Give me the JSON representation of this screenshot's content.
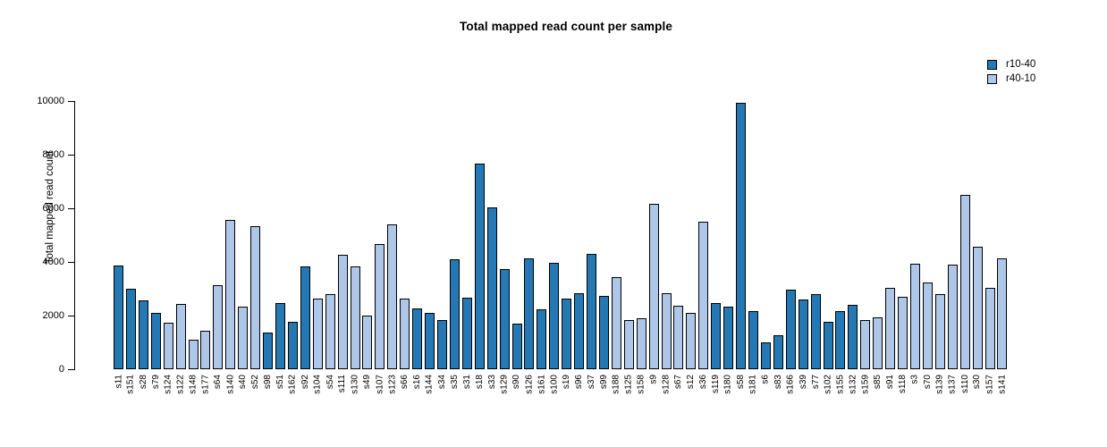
{
  "chart_data": {
    "type": "bar",
    "title": "Total mapped read count per sample",
    "xlabel": "",
    "ylabel": "Total mapped read count",
    "ylim": [
      0,
      10000
    ],
    "yticks": [
      0,
      2000,
      4000,
      6000,
      8000,
      10000
    ],
    "grid": false,
    "legend_position": "top-right",
    "bar_border_color": "#000000",
    "legend": [
      {
        "label": "r10-40",
        "color": "#2478b4"
      },
      {
        "label": "r40-10",
        "color": "#aec6e8"
      }
    ],
    "samples": [
      {
        "id": "s11",
        "group": "r10-40",
        "value": 3880
      },
      {
        "id": "s151",
        "group": "r10-40",
        "value": 3000
      },
      {
        "id": "s28",
        "group": "r10-40",
        "value": 2570
      },
      {
        "id": "s79",
        "group": "r10-40",
        "value": 2110
      },
      {
        "id": "s124",
        "group": "r40-10",
        "value": 1720
      },
      {
        "id": "s122",
        "group": "r40-10",
        "value": 2430
      },
      {
        "id": "s148",
        "group": "r40-10",
        "value": 1090
      },
      {
        "id": "s177",
        "group": "r40-10",
        "value": 1440
      },
      {
        "id": "s64",
        "group": "r40-10",
        "value": 3120
      },
      {
        "id": "s140",
        "group": "r40-10",
        "value": 5570
      },
      {
        "id": "s40",
        "group": "r40-10",
        "value": 2340
      },
      {
        "id": "s52",
        "group": "r40-10",
        "value": 5330
      },
      {
        "id": "s98",
        "group": "r10-40",
        "value": 1360
      },
      {
        "id": "s51",
        "group": "r10-40",
        "value": 2470
      },
      {
        "id": "s162",
        "group": "r10-40",
        "value": 1760
      },
      {
        "id": "s92",
        "group": "r10-40",
        "value": 3840
      },
      {
        "id": "s104",
        "group": "r40-10",
        "value": 2640
      },
      {
        "id": "s54",
        "group": "r40-10",
        "value": 2810
      },
      {
        "id": "s111",
        "group": "r40-10",
        "value": 4280
      },
      {
        "id": "s130",
        "group": "r40-10",
        "value": 3820
      },
      {
        "id": "s49",
        "group": "r40-10",
        "value": 2000
      },
      {
        "id": "s107",
        "group": "r40-10",
        "value": 4660
      },
      {
        "id": "s123",
        "group": "r40-10",
        "value": 5400
      },
      {
        "id": "s66",
        "group": "r40-10",
        "value": 2650
      },
      {
        "id": "s16",
        "group": "r10-40",
        "value": 2280
      },
      {
        "id": "s144",
        "group": "r10-40",
        "value": 2110
      },
      {
        "id": "s34",
        "group": "r10-40",
        "value": 1850
      },
      {
        "id": "s35",
        "group": "r10-40",
        "value": 4090
      },
      {
        "id": "s31",
        "group": "r10-40",
        "value": 2670
      },
      {
        "id": "s18",
        "group": "r10-40",
        "value": 7670
      },
      {
        "id": "s33",
        "group": "r10-40",
        "value": 6050
      },
      {
        "id": "s129",
        "group": "r10-40",
        "value": 3720
      },
      {
        "id": "s90",
        "group": "r10-40",
        "value": 1700
      },
      {
        "id": "s126",
        "group": "r10-40",
        "value": 4120
      },
      {
        "id": "s161",
        "group": "r10-40",
        "value": 2240
      },
      {
        "id": "s100",
        "group": "r10-40",
        "value": 3980
      },
      {
        "id": "s19",
        "group": "r10-40",
        "value": 2630
      },
      {
        "id": "s96",
        "group": "r10-40",
        "value": 2840
      },
      {
        "id": "s37",
        "group": "r10-40",
        "value": 4290
      },
      {
        "id": "s99",
        "group": "r10-40",
        "value": 2740
      },
      {
        "id": "s188",
        "group": "r40-10",
        "value": 3430
      },
      {
        "id": "s125",
        "group": "r40-10",
        "value": 1840
      },
      {
        "id": "s158",
        "group": "r40-10",
        "value": 1910
      },
      {
        "id": "s9",
        "group": "r40-10",
        "value": 6170
      },
      {
        "id": "s128",
        "group": "r40-10",
        "value": 2840
      },
      {
        "id": "s67",
        "group": "r40-10",
        "value": 2380
      },
      {
        "id": "s12",
        "group": "r40-10",
        "value": 2110
      },
      {
        "id": "s36",
        "group": "r40-10",
        "value": 5490
      },
      {
        "id": "s119",
        "group": "r10-40",
        "value": 2470
      },
      {
        "id": "s180",
        "group": "r10-40",
        "value": 2330
      },
      {
        "id": "s58",
        "group": "r10-40",
        "value": 9950
      },
      {
        "id": "s181",
        "group": "r10-40",
        "value": 2160
      },
      {
        "id": "s6",
        "group": "r10-40",
        "value": 1000
      },
      {
        "id": "s83",
        "group": "r10-40",
        "value": 1270
      },
      {
        "id": "s166",
        "group": "r10-40",
        "value": 2970
      },
      {
        "id": "s39",
        "group": "r10-40",
        "value": 2600
      },
      {
        "id": "s77",
        "group": "r10-40",
        "value": 2790
      },
      {
        "id": "s102",
        "group": "r10-40",
        "value": 1770
      },
      {
        "id": "s155",
        "group": "r10-40",
        "value": 2180
      },
      {
        "id": "s132",
        "group": "r10-40",
        "value": 2400
      },
      {
        "id": "s159",
        "group": "r40-10",
        "value": 1830
      },
      {
        "id": "s85",
        "group": "r40-10",
        "value": 1930
      },
      {
        "id": "s91",
        "group": "r40-10",
        "value": 3040
      },
      {
        "id": "s118",
        "group": "r40-10",
        "value": 2690
      },
      {
        "id": "s3",
        "group": "r40-10",
        "value": 3940
      },
      {
        "id": "s70",
        "group": "r40-10",
        "value": 3230
      },
      {
        "id": "s139",
        "group": "r40-10",
        "value": 2810
      },
      {
        "id": "s137",
        "group": "r40-10",
        "value": 3900
      },
      {
        "id": "s110",
        "group": "r40-10",
        "value": 6500
      },
      {
        "id": "s30",
        "group": "r40-10",
        "value": 4580
      },
      {
        "id": "s157",
        "group": "r40-10",
        "value": 3040
      },
      {
        "id": "s141",
        "group": "r40-10",
        "value": 4150
      }
    ]
  }
}
